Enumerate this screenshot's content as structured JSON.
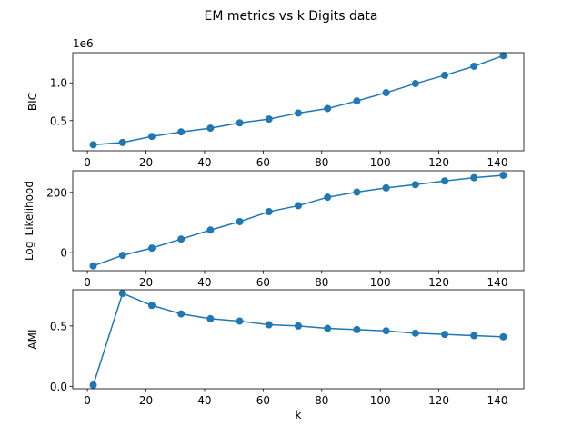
{
  "figure": {
    "title": "EM metrics vs k Digits data"
  },
  "chart_data": [
    {
      "type": "line",
      "xlabel": "",
      "ylabel": "BIC",
      "offset_label": "1e6",
      "xlim": [
        -5,
        149
      ],
      "ylim": [
        0.1,
        1.4
      ],
      "xticks": [
        0,
        20,
        40,
        60,
        80,
        100,
        120,
        140
      ],
      "yticks": [
        0.5,
        1.0
      ],
      "ytick_labels": [
        "0.5",
        "1.0"
      ],
      "color": "#1f77b4",
      "series": [
        {
          "x": [
            2,
            12,
            22,
            32,
            42,
            52,
            62,
            72,
            82,
            92,
            102,
            112,
            122,
            132,
            142
          ],
          "y": [
            0.18,
            0.21,
            0.29,
            0.35,
            0.4,
            0.47,
            0.52,
            0.6,
            0.66,
            0.76,
            0.87,
            0.99,
            1.1,
            1.22,
            1.36
          ]
        }
      ]
    },
    {
      "type": "line",
      "xlabel": "",
      "ylabel": "Log_Likelihood",
      "xlim": [
        -5,
        149
      ],
      "ylim": [
        -60,
        272
      ],
      "xticks": [
        0,
        20,
        40,
        60,
        80,
        100,
        120,
        140
      ],
      "yticks": [
        0,
        200
      ],
      "ytick_labels": [
        "0",
        "200"
      ],
      "color": "#1f77b4",
      "series": [
        {
          "x": [
            2,
            12,
            22,
            32,
            42,
            52,
            62,
            72,
            82,
            92,
            102,
            112,
            122,
            132,
            142
          ],
          "y": [
            -44,
            -9,
            15,
            45,
            75,
            103,
            136,
            156,
            184,
            201,
            215,
            226,
            238,
            249,
            257
          ]
        }
      ]
    },
    {
      "type": "line",
      "xlabel": "k",
      "ylabel": "AMI",
      "xlim": [
        -5,
        149
      ],
      "ylim": [
        -0.02,
        0.8
      ],
      "xticks": [
        0,
        20,
        40,
        60,
        80,
        100,
        120,
        140
      ],
      "yticks": [
        0.0,
        0.5
      ],
      "ytick_labels": [
        "0.0",
        "0.5"
      ],
      "color": "#1f77b4",
      "series": [
        {
          "x": [
            2,
            12,
            22,
            32,
            42,
            52,
            62,
            72,
            82,
            92,
            102,
            112,
            122,
            132,
            142
          ],
          "y": [
            0.01,
            0.77,
            0.67,
            0.6,
            0.56,
            0.54,
            0.51,
            0.5,
            0.48,
            0.47,
            0.46,
            0.44,
            0.43,
            0.42,
            0.41
          ]
        }
      ]
    }
  ]
}
